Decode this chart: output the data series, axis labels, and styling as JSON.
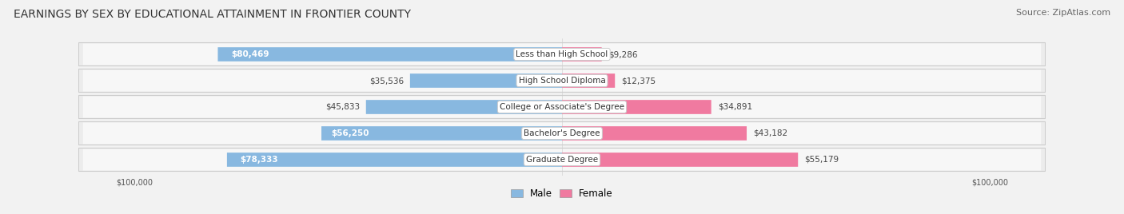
{
  "title": "EARNINGS BY SEX BY EDUCATIONAL ATTAINMENT IN FRONTIER COUNTY",
  "source": "Source: ZipAtlas.com",
  "categories": [
    "Less than High School",
    "High School Diploma",
    "College or Associate's Degree",
    "Bachelor's Degree",
    "Graduate Degree"
  ],
  "male_values": [
    80469,
    35536,
    45833,
    56250,
    78333
  ],
  "female_values": [
    9286,
    12375,
    34891,
    43182,
    55179
  ],
  "male_color": "#88b8e0",
  "female_color": "#f07aa0",
  "max_value": 100000,
  "bg_color": "#f2f2f2",
  "row_bg_color": "#e5e5e5",
  "title_fontsize": 10,
  "source_fontsize": 8,
  "value_fontsize": 7.5,
  "category_fontsize": 7.5,
  "legend_fontsize": 8.5,
  "axis_label": "$100,000",
  "male_label_threshold": 50000
}
